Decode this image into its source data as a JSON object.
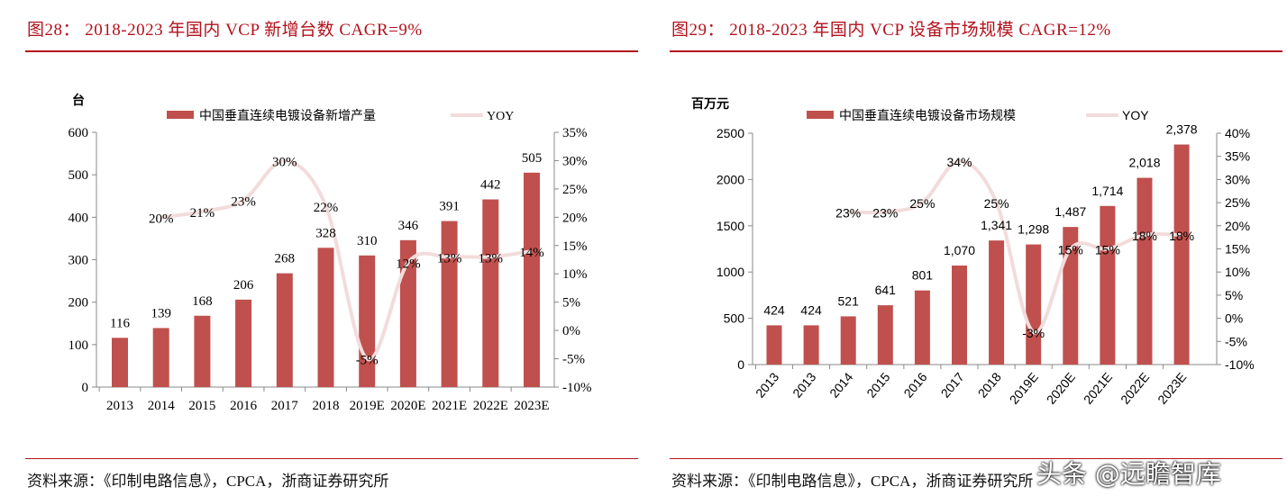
{
  "charts_meta": [
    {
      "title": "图28：  2018-2023 年国内 VCP 新增台数 CAGR=9%",
      "source": "资料来源：《印制电路信息》，CPCA，浙商证券研究所"
    },
    {
      "title": "图29：  2018-2023 年国内 VCP 设备市场规模 CAGR=12%",
      "source": "资料来源：《印制电路信息》，CPCA，浙商证券研究所"
    }
  ],
  "watermark": "头条 @远瞻智库",
  "colors": {
    "bar": "#c0504d",
    "line": "#f2dcdb",
    "title": "#b3121d"
  },
  "chart_data": [
    {
      "type": "bar+line",
      "ylabel": "台",
      "categories": [
        "2013",
        "2014",
        "2015",
        "2016",
        "2017",
        "2018",
        "2019E",
        "2020E",
        "2021E",
        "2022E",
        "2023E"
      ],
      "series": [
        {
          "name": "中国垂直连续电镀设备新增产量",
          "type": "bar",
          "axis": "left",
          "values": [
            116,
            139,
            168,
            206,
            268,
            328,
            310,
            346,
            391,
            442,
            505
          ],
          "labels": [
            "116",
            "139",
            "168",
            "206",
            "268",
            "328",
            "310",
            "346",
            "391",
            "442",
            "505"
          ]
        },
        {
          "name": "YOY",
          "type": "line",
          "axis": "right",
          "values": [
            null,
            20,
            21,
            23,
            30,
            22,
            -5,
            12,
            13,
            13,
            14
          ],
          "labels": [
            "",
            "20%",
            "21%",
            "23%",
            "30%",
            "22%",
            "-5%",
            "12%",
            "13%",
            "13%",
            "14%"
          ]
        }
      ],
      "ylim": [
        0,
        600
      ],
      "yticks": [
        "0",
        "100",
        "200",
        "300",
        "400",
        "500",
        "600"
      ],
      "y2lim": [
        -10,
        35
      ],
      "y2ticks": [
        "-10%",
        "-5%",
        "0%",
        "5%",
        "10%",
        "15%",
        "20%",
        "25%",
        "30%",
        "35%"
      ],
      "legend": "top",
      "grid": false
    },
    {
      "type": "bar+line",
      "ylabel": "百万元",
      "categories": [
        "2013",
        "2013",
        "2014",
        "2015",
        "2016",
        "2017",
        "2018",
        "2019E",
        "2020E",
        "2021E",
        "2022E",
        "2023E"
      ],
      "series": [
        {
          "name": "中国垂直连续电镀设备市场规模",
          "type": "bar",
          "axis": "left",
          "values": [
            424,
            424,
            521,
            641,
            801,
            1070,
            1341,
            1298,
            1487,
            1714,
            2018,
            2378
          ],
          "labels": [
            "424",
            "424",
            "521",
            "641",
            "801",
            "1,070",
            "1,341",
            "1,298",
            "1,487",
            "1,714",
            "2,018",
            "2,378"
          ]
        },
        {
          "name": "YOY",
          "type": "line",
          "axis": "right",
          "values": [
            null,
            null,
            23,
            23,
            25,
            34,
            25,
            -3,
            15,
            15,
            18,
            18
          ],
          "labels": [
            "",
            "",
            "23%",
            "23%",
            "25%",
            "34%",
            "25%",
            "-3%",
            "15%",
            "15%",
            "18%",
            "18%"
          ]
        }
      ],
      "ylim": [
        0,
        2500
      ],
      "yticks": [
        "0",
        "500",
        "1000",
        "1500",
        "2000",
        "2500"
      ],
      "y2lim": [
        -10,
        40
      ],
      "y2ticks": [
        "-10%",
        "-5%",
        "0%",
        "5%",
        "10%",
        "15%",
        "20%",
        "25%",
        "30%",
        "35%",
        "40%"
      ],
      "legend": "top",
      "grid": false
    }
  ]
}
